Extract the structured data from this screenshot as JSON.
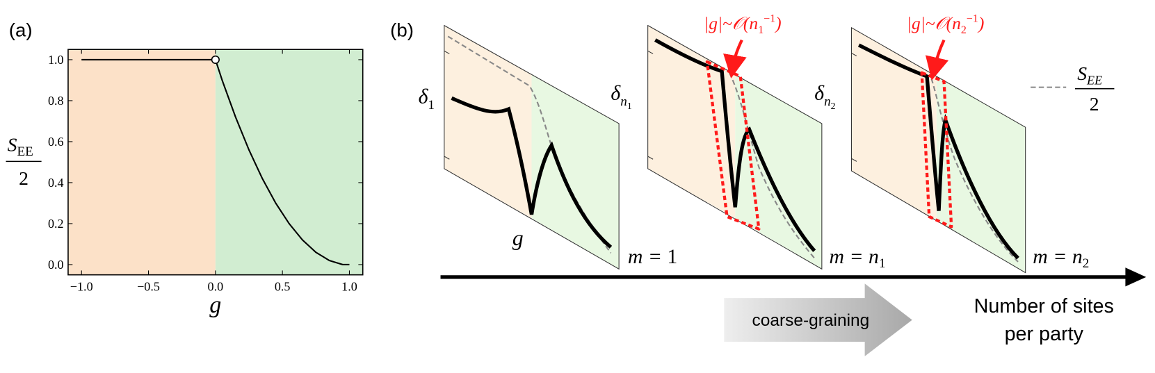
{
  "chart_data": {
    "type": "line",
    "panel_label": "(a)",
    "xlabel": "g",
    "ylabel_main": "S",
    "ylabel_sub": "EE",
    "ylabel_den": "2",
    "x": [
      -1,
      0,
      0.05,
      0.1,
      0.15,
      0.2,
      0.25,
      0.3,
      0.35,
      0.4,
      0.45,
      0.5,
      0.55,
      0.6,
      0.65,
      0.7,
      0.75,
      0.8,
      0.85,
      0.9,
      0.95,
      1.0
    ],
    "values": [
      1,
      1,
      0.9,
      0.81,
      0.72,
      0.64,
      0.56,
      0.49,
      0.42,
      0.36,
      0.3,
      0.25,
      0.2,
      0.16,
      0.12,
      0.09,
      0.06,
      0.04,
      0.02,
      0.01,
      0.0,
      0
    ],
    "color": "#000000",
    "xlim": [
      -1.1,
      1.1
    ],
    "ylim": [
      -0.05,
      1.05
    ],
    "xticks": [
      {
        "value": -1,
        "label": "−1.0"
      },
      {
        "value": -0.5,
        "label": "−0.5"
      },
      {
        "value": 0,
        "label": "0.0"
      },
      0.5,
      {
        "value": 1,
        "label": "1.0"
      }
    ],
    "yticks": [
      {
        "value": 0,
        "label": "0.0"
      },
      0.2,
      0.4,
      0.6,
      0.8,
      {
        "value": 1,
        "label": "1.0"
      }
    ],
    "region_colors": {
      "negative": "#fce1c8",
      "positive": "#d1edd1"
    }
  },
  "panel_b": {
    "label": "(b)",
    "g_label": "g",
    "slices": [
      {
        "delta": "δ",
        "sub": "1",
        "m": "m = ",
        "m_main": "1"
      },
      {
        "delta": "δ",
        "sub": "n",
        "subsub": "1",
        "m": "m = ",
        "m_main": "n",
        "m_sub": "1"
      },
      {
        "delta": "δ",
        "sub": "n",
        "subsub": "2",
        "m": "m = ",
        "m_main": "n",
        "m_sub": "2"
      }
    ],
    "annotations": [
      {
        "text": "|g|~𝒪(n",
        "sub": "1",
        "sup": "−1",
        "close": ")"
      },
      {
        "text": "|g|~𝒪(n",
        "sub": "2",
        "sup": "−1",
        "close": ")"
      }
    ],
    "legend": {
      "main": "S",
      "sub": "EE",
      "den": "2"
    },
    "arrow_label": "coarse-graining",
    "axis_label": [
      "Number of sites",
      "per party"
    ]
  }
}
